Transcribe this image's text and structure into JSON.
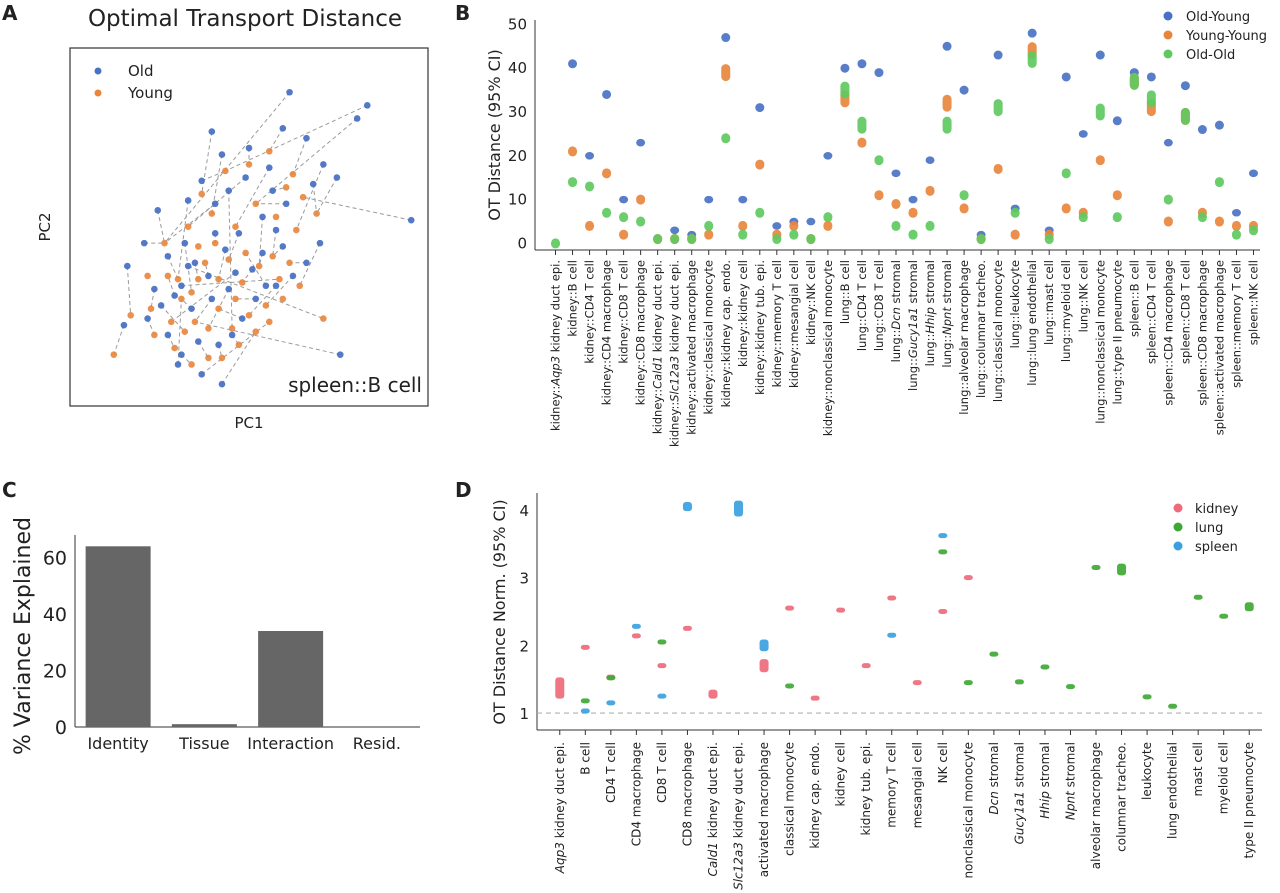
{
  "chart_data": [
    {
      "panel": "A",
      "type": "scatter",
      "title": "Optimal Transport Distance",
      "xlabel": "PC1",
      "ylabel": "PC2",
      "annotation": "spleen::B cell",
      "legend": [
        {
          "name": "Old",
          "color": "#4a72c4"
        },
        {
          "name": "Young",
          "color": "#e8853d"
        }
      ],
      "xlim": [
        0,
        10
      ],
      "ylim": [
        0,
        10
      ],
      "points_old": [
        [
          6.2,
          9.2
        ],
        [
          8.5,
          8.8
        ],
        [
          8.2,
          8.4
        ],
        [
          3.9,
          8.0
        ],
        [
          4.2,
          7.3
        ],
        [
          5.0,
          7.5
        ],
        [
          6.0,
          8.1
        ],
        [
          6.7,
          7.8
        ],
        [
          7.2,
          7.0
        ],
        [
          5.6,
          6.9
        ],
        [
          6.9,
          6.4
        ],
        [
          3.2,
          5.9
        ],
        [
          4.0,
          5.8
        ],
        [
          4.9,
          6.6
        ],
        [
          5.4,
          5.4
        ],
        [
          6.1,
          5.8
        ],
        [
          7.6,
          6.6
        ],
        [
          2.3,
          5.6
        ],
        [
          3.6,
          6.5
        ],
        [
          5.8,
          5.0
        ],
        [
          1.4,
          3.9
        ],
        [
          1.9,
          4.6
        ],
        [
          2.6,
          4.2
        ],
        [
          3.1,
          4.6
        ],
        [
          3.4,
          4.0
        ],
        [
          3.8,
          3.6
        ],
        [
          4.3,
          4.4
        ],
        [
          4.7,
          4.9
        ],
        [
          5.1,
          3.8
        ],
        [
          5.4,
          4.3
        ],
        [
          6.0,
          4.5
        ],
        [
          6.7,
          4.0
        ],
        [
          7.1,
          4.6
        ],
        [
          9.8,
          5.3
        ],
        [
          2.2,
          3.2
        ],
        [
          2.8,
          3.0
        ],
        [
          3.3,
          2.6
        ],
        [
          3.9,
          2.9
        ],
        [
          4.4,
          3.2
        ],
        [
          4.8,
          2.3
        ],
        [
          5.2,
          2.9
        ],
        [
          5.8,
          3.3
        ],
        [
          6.3,
          3.6
        ],
        [
          2.0,
          2.3
        ],
        [
          2.6,
          1.8
        ],
        [
          3.0,
          1.2
        ],
        [
          3.5,
          1.6
        ],
        [
          4.1,
          1.5
        ],
        [
          4.5,
          1.8
        ],
        [
          4.2,
          0.3
        ],
        [
          3.6,
          0.6
        ],
        [
          2.9,
          0.9
        ],
        [
          7.7,
          1.2
        ],
        [
          3.2,
          3.9
        ],
        [
          4.0,
          4.9
        ],
        [
          4.6,
          3.7
        ],
        [
          5.5,
          3.3
        ],
        [
          3.0,
          3.3
        ],
        [
          5.7,
          6.2
        ],
        [
          4.4,
          6.2
        ],
        [
          2.4,
          2.7
        ],
        [
          1.3,
          2.1
        ]
      ],
      "points_young": [
        [
          1.0,
          1.2
        ],
        [
          1.5,
          2.4
        ],
        [
          2.1,
          2.6
        ],
        [
          2.6,
          3.6
        ],
        [
          3.0,
          2.9
        ],
        [
          3.4,
          2.2
        ],
        [
          3.8,
          2.0
        ],
        [
          4.1,
          2.6
        ],
        [
          4.6,
          2.9
        ],
        [
          5.0,
          2.4
        ],
        [
          5.5,
          2.7
        ],
        [
          6.0,
          2.9
        ],
        [
          2.9,
          3.5
        ],
        [
          3.3,
          3.1
        ],
        [
          3.7,
          4.0
        ],
        [
          4.1,
          3.5
        ],
        [
          4.4,
          4.1
        ],
        [
          4.8,
          3.4
        ],
        [
          5.3,
          3.9
        ],
        [
          5.7,
          4.2
        ],
        [
          6.2,
          4.0
        ],
        [
          6.5,
          3.3
        ],
        [
          2.2,
          1.8
        ],
        [
          2.8,
          1.4
        ],
        [
          3.3,
          0.9
        ],
        [
          3.8,
          1.1
        ],
        [
          4.2,
          1.1
        ],
        [
          4.7,
          1.5
        ],
        [
          5.2,
          1.9
        ],
        [
          5.6,
          2.2
        ],
        [
          2.5,
          4.6
        ],
        [
          3.2,
          5.1
        ],
        [
          3.9,
          5.5
        ],
        [
          4.6,
          5.1
        ],
        [
          5.2,
          5.8
        ],
        [
          5.8,
          5.4
        ],
        [
          6.4,
          5.0
        ],
        [
          7.0,
          5.5
        ],
        [
          3.6,
          6.1
        ],
        [
          4.3,
          6.8
        ],
        [
          5.0,
          7.0
        ],
        [
          5.6,
          7.4
        ],
        [
          6.3,
          6.7
        ],
        [
          6.6,
          6.0
        ],
        [
          7.2,
          2.3
        ],
        [
          4.0,
          4.6
        ],
        [
          3.5,
          3.5
        ],
        [
          2.7,
          2.2
        ],
        [
          4.9,
          4.3
        ],
        [
          5.9,
          3.5
        ],
        [
          6.1,
          6.3
        ],
        [
          4.5,
          2.0
        ],
        [
          3.1,
          1.9
        ],
        [
          2.0,
          3.6
        ],
        [
          3.5,
          4.5
        ]
      ],
      "pairs": [
        [
          0,
          30
        ],
        [
          1,
          39
        ],
        [
          2,
          34
        ],
        [
          3,
          38
        ],
        [
          4,
          32
        ],
        [
          5,
          40
        ],
        [
          6,
          41
        ],
        [
          7,
          42
        ],
        [
          8,
          36
        ],
        [
          9,
          33
        ],
        [
          10,
          37
        ],
        [
          11,
          12
        ],
        [
          12,
          30
        ],
        [
          13,
          31
        ],
        [
          14,
          18
        ],
        [
          15,
          34
        ],
        [
          16,
          37
        ],
        [
          17,
          30
        ],
        [
          18,
          39
        ],
        [
          19,
          19
        ],
        [
          20,
          1
        ],
        [
          21,
          30
        ],
        [
          22,
          12
        ],
        [
          23,
          13
        ],
        [
          24,
          46
        ],
        [
          25,
          14
        ],
        [
          26,
          15
        ],
        [
          27,
          16
        ],
        [
          28,
          17
        ],
        [
          29,
          18
        ],
        [
          30,
          19
        ],
        [
          31,
          20
        ],
        [
          32,
          21
        ],
        [
          33,
          43
        ],
        [
          34,
          2
        ],
        [
          35,
          3
        ],
        [
          36,
          4
        ],
        [
          37,
          5
        ],
        [
          38,
          6
        ],
        [
          39,
          7
        ],
        [
          40,
          8
        ],
        [
          41,
          9
        ],
        [
          42,
          10
        ],
        [
          43,
          22
        ],
        [
          44,
          23
        ],
        [
          45,
          24
        ],
        [
          46,
          25
        ],
        [
          47,
          26
        ],
        [
          48,
          27
        ],
        [
          49,
          28
        ],
        [
          50,
          29
        ],
        [
          51,
          4
        ],
        [
          52,
          5
        ],
        [
          53,
          44
        ],
        [
          54,
          45
        ],
        [
          55,
          47
        ],
        [
          56,
          48
        ],
        [
          57,
          49
        ],
        [
          58,
          50
        ],
        [
          59,
          51
        ],
        [
          60,
          52
        ],
        [
          61,
          0
        ]
      ]
    },
    {
      "panel": "B",
      "type": "scatter",
      "ylabel": "OT Distance (95% CI)",
      "ylim": [
        -1.5,
        51
      ],
      "yticks": [
        0,
        10,
        20,
        30,
        40,
        50
      ],
      "legend_position": "top-right",
      "categories": [
        "kidney::Aqp3 kidney duct epi.",
        "kidney::B cell",
        "kidney::CD4 T cell",
        "kidney::CD4 macrophage",
        "kidney::CD8 T cell",
        "kidney::CD8 macrophage",
        "kidney::Cald1 kidney duct epi.",
        "kidney::Slc12a3 kidney duct epi.",
        "kidney::activated macrophage",
        "kidney::classical monocyte",
        "kidney::kidney cap. endo.",
        "kidney::kidney cell",
        "kidney::kidney tub. epi.",
        "kidney::memory T cell",
        "kidney::mesangial cell",
        "kidney::NK cell",
        "kidney::nonclassical monocyte",
        "lung::B cell",
        "lung::CD4 T cell",
        "lung::CD8 T cell",
        "lung::Dcn stromal",
        "lung::Gucy1a1 stromal",
        "lung::Hhip stromal",
        "lung::Npnt stromal",
        "lung::alveolar macrophage",
        "lung::columnar tracheo.",
        "lung::classical monocyte",
        "lung::leukocyte",
        "lung::lung endothelial",
        "lung::mast cell",
        "lung::myeloid cell",
        "lung::NK cell",
        "lung::nonclassical monocyte",
        "lung::type II pneumocyte",
        "spleen::B cell",
        "spleen::CD4 T cell",
        "spleen::CD4 macrophage",
        "spleen::CD8 T cell",
        "spleen::CD8 macrophage",
        "spleen::activated macrophage",
        "spleen::memory T cell",
        "spleen::NK cell"
      ],
      "series": [
        {
          "name": "Old-Young",
          "color": "#4a72c4",
          "values": [
            null,
            41,
            20,
            34,
            10,
            23,
            null,
            3,
            2,
            10,
            47,
            10,
            31,
            4,
            5,
            5,
            20,
            40,
            41,
            39,
            16,
            10,
            19,
            45,
            35,
            2,
            43,
            8,
            48,
            3,
            38,
            25,
            43,
            28,
            39,
            38,
            23,
            36,
            26,
            27,
            7,
            16
          ]
        },
        {
          "name": "Young-Young",
          "color": "#e8853d",
          "values": [
            null,
            21,
            4,
            16,
            2,
            10,
            1,
            1,
            1,
            2,
            39,
            4,
            18,
            2,
            4,
            1,
            4,
            33,
            23,
            11,
            9,
            7,
            12,
            32,
            8,
            1,
            17,
            2,
            44,
            2,
            8,
            7,
            19,
            11,
            37,
            31,
            5,
            29,
            7,
            5,
            4,
            4
          ]
        },
        {
          "name": "Old-Old",
          "color": "#5fc95f",
          "values": [
            0,
            14,
            13,
            7,
            6,
            5,
            1,
            1,
            1,
            4,
            24,
            2,
            7,
            1,
            2,
            1,
            6,
            35,
            27,
            19,
            4,
            2,
            4,
            27,
            11,
            1,
            31,
            7,
            42,
            1,
            16,
            6,
            30,
            6,
            37,
            33,
            10,
            29,
            6,
            14,
            2,
            3
          ]
        }
      ]
    },
    {
      "panel": "C",
      "type": "bar",
      "ylabel": "% Variance Explained",
      "categories": [
        "Identity",
        "Tissue",
        "Interaction",
        "Resid."
      ],
      "values": [
        64,
        1,
        34,
        0
      ],
      "ylim": [
        0,
        68
      ],
      "yticks": [
        0,
        20,
        40,
        60
      ],
      "bar_color": "#666666"
    },
    {
      "panel": "D",
      "type": "scatter",
      "ylabel": "OT Distance Norm. (95% CI)",
      "ylim": [
        0.75,
        4.25
      ],
      "yticks": [
        1,
        2,
        3,
        4
      ],
      "reference_line": 1,
      "legend_position": "top-right",
      "categories": [
        "Aqp3 kidney duct epi.",
        "B cell",
        "CD4 T cell",
        "CD4 macrophage",
        "CD8 T cell",
        "CD8 macrophage",
        "Cald1 kidney duct epi.",
        "Slc12a3 kidney duct epi.",
        "activated macrophage",
        "classical monocyte",
        "kidney cap. endo.",
        "kidney cell",
        "kidney tub. epi.",
        "memory T cell",
        "mesangial cell",
        "NK cell",
        "nonclassical monocyte",
        "Dcn stromal",
        "Gucy1a1 stromal",
        "Hhip stromal",
        "Npnt stromal",
        "alveolar macrophage",
        "columnar tracheo.",
        "leukocyte",
        "lung endothelial",
        "mast cell",
        "myeloid cell",
        "type II pneumocyte"
      ],
      "italic_categories": [
        "Aqp3",
        "Cald1",
        "Slc12a3",
        "Dcn",
        "Gucy1a1",
        "Hhip",
        "Npnt"
      ],
      "series": [
        {
          "name": "kidney",
          "color": "#ee6b7b",
          "values": [
            1.37,
            1.97,
            1.53,
            2.14,
            1.7,
            2.25,
            1.28,
            null,
            1.7,
            2.55,
            1.22,
            2.52,
            1.7,
            2.7,
            1.45,
            2.5,
            3.0,
            null,
            null,
            null,
            null,
            null,
            null,
            null,
            null,
            null,
            null,
            null
          ],
          "spread": [
            0.12,
            0,
            0,
            0,
            0,
            0,
            0.03,
            0,
            0.06,
            0,
            0,
            0,
            0,
            0,
            0,
            0,
            0,
            0,
            0,
            0,
            0,
            0,
            0,
            0,
            0,
            0,
            0,
            0
          ]
        },
        {
          "name": "lung",
          "color": "#3fa835",
          "values": [
            null,
            1.18,
            1.52,
            null,
            2.05,
            null,
            null,
            null,
            null,
            1.4,
            null,
            null,
            null,
            null,
            null,
            3.38,
            1.45,
            1.87,
            1.46,
            1.68,
            1.39,
            3.15,
            3.12,
            1.24,
            1.1,
            2.71,
            2.43,
            2.57
          ],
          "spread": [
            0,
            0,
            0,
            0,
            0,
            0,
            0,
            0,
            0,
            0,
            0,
            0,
            0,
            0,
            0,
            0,
            0,
            0,
            0,
            0,
            0,
            0,
            0.05,
            0,
            0,
            0,
            0,
            0.03
          ]
        },
        {
          "name": "spleen",
          "color": "#3aa0e0",
          "values": [
            null,
            1.03,
            1.15,
            2.28,
            1.25,
            4.05,
            null,
            4.02,
            2.0,
            null,
            null,
            null,
            null,
            2.15,
            null,
            3.62,
            null,
            null,
            null,
            null,
            null,
            null,
            null,
            null,
            null,
            null,
            null,
            null
          ],
          "spread": [
            0,
            0,
            0,
            0,
            0,
            0.03,
            0,
            0.08,
            0.05,
            0,
            0,
            0,
            0,
            0,
            0,
            0,
            0,
            0,
            0,
            0,
            0,
            0,
            0,
            0,
            0,
            0,
            0,
            0
          ]
        }
      ]
    }
  ]
}
